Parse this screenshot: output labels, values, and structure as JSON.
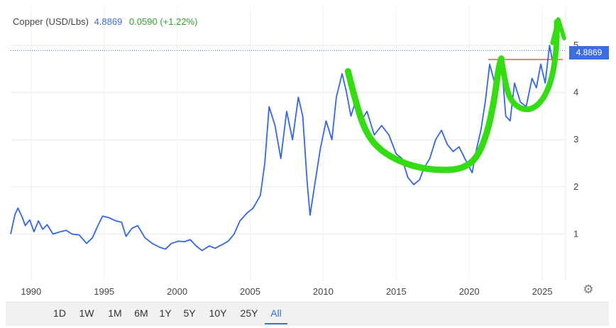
{
  "legend": {
    "name": "Copper (USD/Lbs)",
    "price": "4.8869",
    "change": "0.0590 (+1.22%)"
  },
  "price_tag": "4.8869",
  "range_buttons": [
    "1D",
    "1W",
    "1M",
    "6M",
    "1Y",
    "5Y",
    "10Y",
    "25Y",
    "All"
  ],
  "active_range": "All",
  "colors": {
    "line": "#3366e6",
    "annotation": "#33dd11",
    "resistance": "#f08080",
    "accent": "#3b6fe0"
  },
  "chart_data": {
    "type": "line",
    "title": "",
    "xlabel": "",
    "ylabel": "",
    "xlim": [
      1988.6,
      2026.6
    ],
    "ylim": [
      0,
      5.2
    ],
    "x_ticks": [
      1990,
      1995,
      2000,
      2005,
      2010,
      2015,
      2020,
      2025
    ],
    "y_ticks": [
      1,
      2,
      3,
      4,
      5
    ],
    "grid": true,
    "series": [
      {
        "points": [
          [
            1988.6,
            1.0
          ],
          [
            1988.9,
            1.42
          ],
          [
            1989.1,
            1.55
          ],
          [
            1989.4,
            1.35
          ],
          [
            1989.6,
            1.18
          ],
          [
            1989.9,
            1.3
          ],
          [
            1990.2,
            1.05
          ],
          [
            1990.5,
            1.28
          ],
          [
            1990.8,
            1.1
          ],
          [
            1991.1,
            1.2
          ],
          [
            1991.5,
            1.0
          ],
          [
            1992.0,
            1.05
          ],
          [
            1992.4,
            1.08
          ],
          [
            1992.8,
            1.0
          ],
          [
            1993.3,
            0.98
          ],
          [
            1993.8,
            0.8
          ],
          [
            1994.2,
            0.92
          ],
          [
            1994.6,
            1.2
          ],
          [
            1994.9,
            1.38
          ],
          [
            1995.3,
            1.35
          ],
          [
            1995.8,
            1.28
          ],
          [
            1996.2,
            1.25
          ],
          [
            1996.5,
            0.95
          ],
          [
            1996.9,
            1.12
          ],
          [
            1997.3,
            1.18
          ],
          [
            1997.8,
            0.92
          ],
          [
            1998.3,
            0.8
          ],
          [
            1998.8,
            0.72
          ],
          [
            1999.2,
            0.68
          ],
          [
            1999.6,
            0.8
          ],
          [
            2000.1,
            0.85
          ],
          [
            2000.5,
            0.84
          ],
          [
            2000.9,
            0.88
          ],
          [
            2001.3,
            0.75
          ],
          [
            2001.7,
            0.65
          ],
          [
            2002.2,
            0.75
          ],
          [
            2002.6,
            0.7
          ],
          [
            2003.1,
            0.78
          ],
          [
            2003.5,
            0.85
          ],
          [
            2003.9,
            1.0
          ],
          [
            2004.3,
            1.28
          ],
          [
            2004.8,
            1.45
          ],
          [
            2005.2,
            1.55
          ],
          [
            2005.7,
            1.82
          ],
          [
            2006.0,
            2.5
          ],
          [
            2006.3,
            3.7
          ],
          [
            2006.7,
            3.3
          ],
          [
            2007.1,
            2.6
          ],
          [
            2007.5,
            3.6
          ],
          [
            2007.9,
            3.0
          ],
          [
            2008.3,
            3.9
          ],
          [
            2008.6,
            3.5
          ],
          [
            2008.9,
            2.1
          ],
          [
            2009.1,
            1.4
          ],
          [
            2009.4,
            2.0
          ],
          [
            2009.8,
            2.8
          ],
          [
            2010.2,
            3.4
          ],
          [
            2010.6,
            3.0
          ],
          [
            2010.9,
            3.9
          ],
          [
            2011.3,
            4.4
          ],
          [
            2011.6,
            4.0
          ],
          [
            2011.9,
            3.5
          ],
          [
            2012.2,
            3.8
          ],
          [
            2012.6,
            3.4
          ],
          [
            2013.0,
            3.6
          ],
          [
            2013.5,
            3.1
          ],
          [
            2014.0,
            3.3
          ],
          [
            2014.5,
            3.1
          ],
          [
            2015.0,
            2.7
          ],
          [
            2015.4,
            2.6
          ],
          [
            2015.8,
            2.2
          ],
          [
            2016.2,
            2.05
          ],
          [
            2016.6,
            2.15
          ],
          [
            2016.9,
            2.4
          ],
          [
            2017.3,
            2.6
          ],
          [
            2017.7,
            3.0
          ],
          [
            2018.1,
            3.2
          ],
          [
            2018.5,
            2.9
          ],
          [
            2018.9,
            2.75
          ],
          [
            2019.3,
            2.85
          ],
          [
            2019.7,
            2.6
          ],
          [
            2020.2,
            2.3
          ],
          [
            2020.5,
            2.8
          ],
          [
            2020.8,
            3.2
          ],
          [
            2021.1,
            3.8
          ],
          [
            2021.4,
            4.6
          ],
          [
            2021.7,
            4.25
          ],
          [
            2022.0,
            4.5
          ],
          [
            2022.2,
            4.7
          ],
          [
            2022.5,
            3.5
          ],
          [
            2022.8,
            3.4
          ],
          [
            2023.1,
            4.2
          ],
          [
            2023.5,
            3.8
          ],
          [
            2023.9,
            3.7
          ],
          [
            2024.3,
            4.3
          ],
          [
            2024.6,
            4.1
          ],
          [
            2024.9,
            4.6
          ],
          [
            2025.2,
            4.2
          ],
          [
            2025.5,
            5.0
          ],
          [
            2025.8,
            4.5
          ],
          [
            2026.1,
            4.89
          ]
        ]
      }
    ],
    "annotations": {
      "resistance_level": 4.7,
      "resistance_from": 2021.3,
      "cup_curve": [
        [
          2011.7,
          4.45
        ],
        [
          2012.3,
          3.7
        ],
        [
          2013.0,
          3.1
        ],
        [
          2014.0,
          2.75
        ],
        [
          2015.5,
          2.5
        ],
        [
          2017.0,
          2.38
        ],
        [
          2018.5,
          2.35
        ],
        [
          2019.6,
          2.4
        ],
        [
          2020.5,
          2.6
        ],
        [
          2021.2,
          3.1
        ],
        [
          2021.7,
          3.8
        ],
        [
          2022.0,
          4.5
        ],
        [
          2022.2,
          4.72
        ]
      ],
      "handle_curve": [
        [
          2022.2,
          4.72
        ],
        [
          2022.5,
          4.1
        ],
        [
          2023.0,
          3.75
        ],
        [
          2024.0,
          3.6
        ],
        [
          2025.0,
          3.8
        ],
        [
          2025.7,
          4.3
        ],
        [
          2026.0,
          5.0
        ],
        [
          2026.0,
          5.5
        ]
      ],
      "arrow_head": [
        [
          2025.7,
          5.05
        ],
        [
          2026.1,
          5.55
        ],
        [
          2026.5,
          5.15
        ]
      ]
    }
  }
}
